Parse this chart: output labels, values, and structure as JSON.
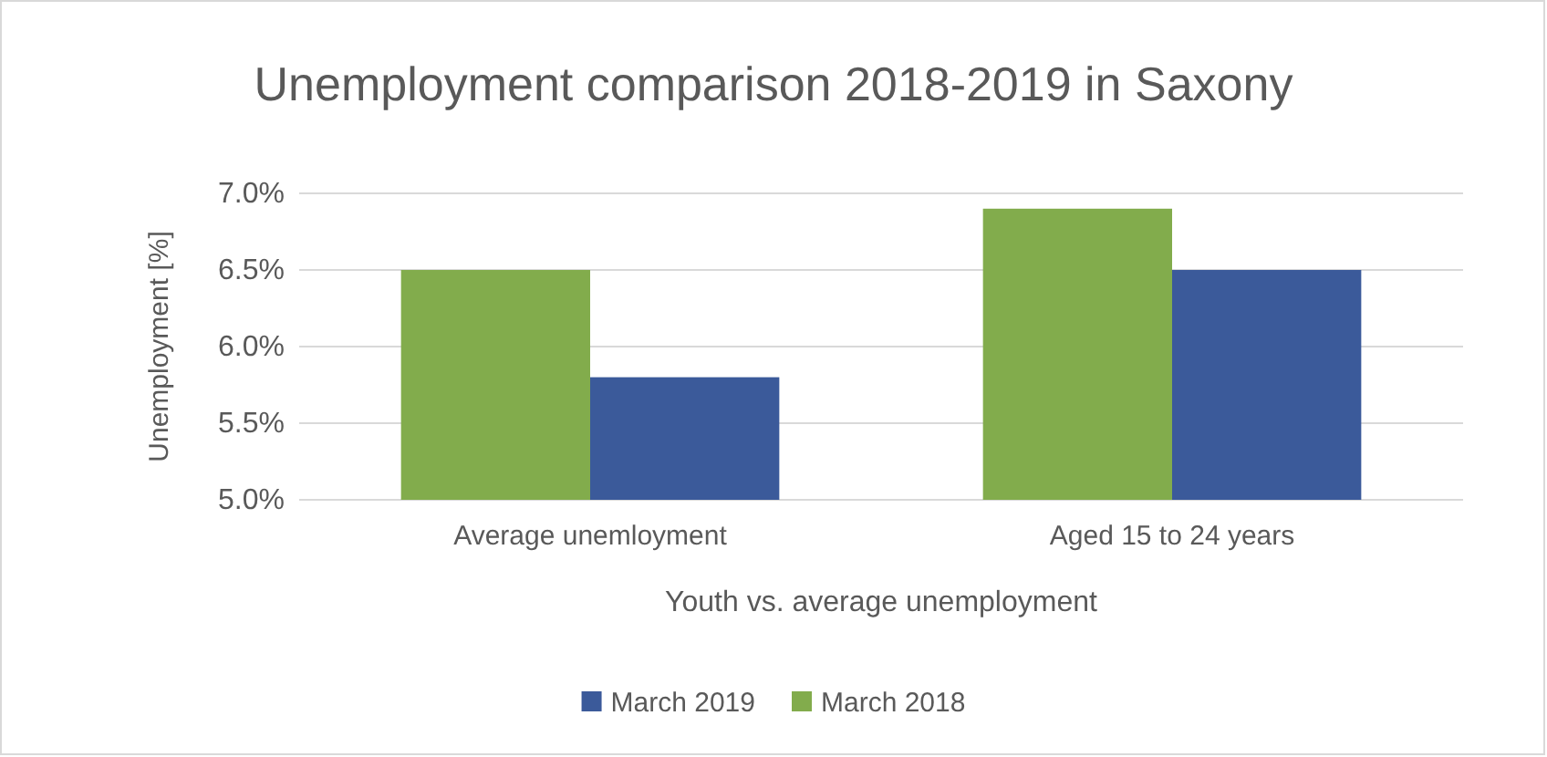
{
  "chart_data": {
    "type": "bar",
    "title": "Unemployment comparison 2018-2019 in Saxony",
    "xlabel": "Youth vs. average unemployment",
    "ylabel": "Unemployment [%]",
    "categories": [
      "Average unemloyment",
      "Aged 15 to 24 years"
    ],
    "series": [
      {
        "name": "March 2018",
        "color": "#82ac4c",
        "values": [
          6.5,
          6.9
        ]
      },
      {
        "name": "March 2019",
        "color": "#3b5a9a",
        "values": [
          5.8,
          6.5
        ]
      }
    ],
    "ylim": [
      5.0,
      7.0
    ],
    "yticks": [
      {
        "value": 5.0,
        "label": "5.0%"
      },
      {
        "value": 5.5,
        "label": "5.5%"
      },
      {
        "value": 6.0,
        "label": "6.0%"
      },
      {
        "value": 6.5,
        "label": "6.5%"
      },
      {
        "value": 7.0,
        "label": "7.0%"
      }
    ],
    "grid": "y",
    "legend": "bottom"
  }
}
